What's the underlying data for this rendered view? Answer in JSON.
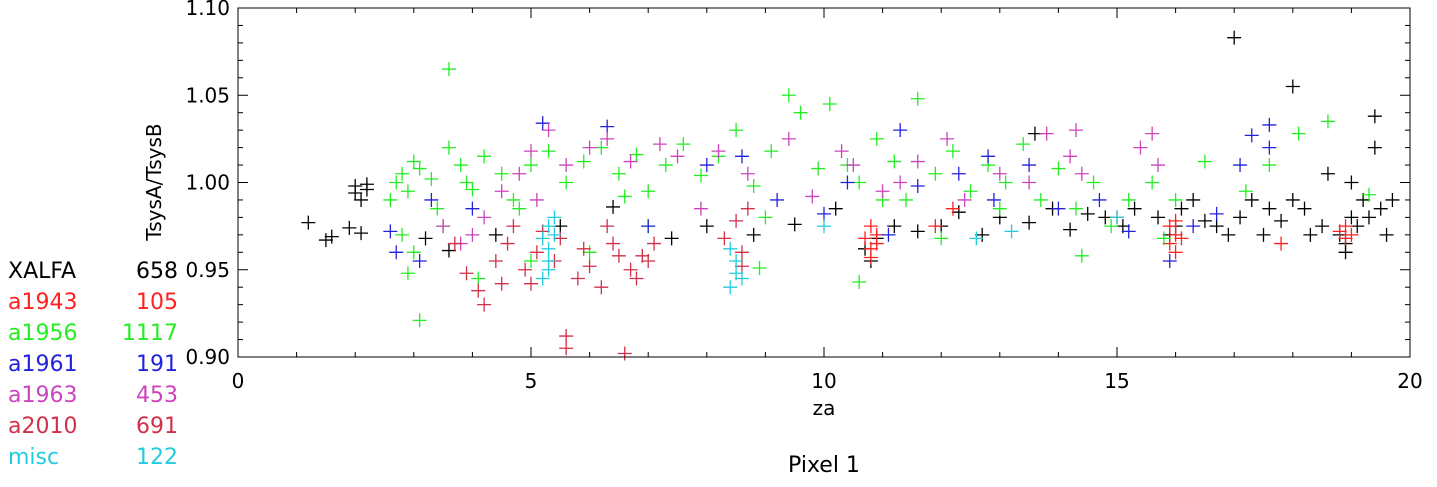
{
  "chart_data": {
    "type": "scatter",
    "title": "Pixel 1",
    "xlabel": "za",
    "ylabel": "TsysA/TsysB",
    "xlim": [
      0,
      20
    ],
    "ylim": [
      0.9,
      1.1
    ],
    "xticks": [
      "0",
      "5",
      "10",
      "15",
      "20"
    ],
    "yticks": [
      "0.90",
      "0.95",
      "1.00",
      "1.05",
      "1.10"
    ],
    "marker": "plus",
    "legend_position": "left",
    "legend": [
      {
        "name": "XALFA",
        "count": "658",
        "color": "#000000"
      },
      {
        "name": "a1943",
        "count": "105",
        "color": "#ff2020"
      },
      {
        "name": "a1956",
        "count": "1117",
        "color": "#22ee22"
      },
      {
        "name": "a1961",
        "count": "191",
        "color": "#2222dd"
      },
      {
        "name": "a1963",
        "count": "453",
        "color": "#cc44bb"
      },
      {
        "name": "a2010",
        "count": "691",
        "color": "#d03048"
      },
      {
        "name": "misc",
        "count": "122",
        "color": "#22ccdd"
      }
    ],
    "series": [
      {
        "name": "XALFA",
        "color": "#000000",
        "points": [
          [
            1.2,
            0.977
          ],
          [
            1.5,
            0.967
          ],
          [
            1.6,
            0.969
          ],
          [
            1.9,
            0.974
          ],
          [
            2.1,
            0.971
          ],
          [
            2.0,
            0.998
          ],
          [
            2.0,
            0.994
          ],
          [
            2.1,
            0.99
          ],
          [
            2.2,
            0.996
          ],
          [
            2.2,
            0.999
          ],
          [
            10.7,
            0.962
          ],
          [
            10.8,
            0.955
          ],
          [
            10.9,
            0.968
          ],
          [
            11.2,
            0.975
          ],
          [
            11.6,
            0.972
          ],
          [
            12.0,
            0.975
          ],
          [
            12.3,
            0.983
          ],
          [
            12.7,
            0.97
          ],
          [
            13.0,
            0.98
          ],
          [
            13.5,
            0.977
          ],
          [
            13.6,
            1.028
          ],
          [
            13.9,
            0.985
          ],
          [
            14.2,
            0.973
          ],
          [
            14.5,
            0.982
          ],
          [
            14.8,
            0.98
          ],
          [
            15.1,
            0.975
          ],
          [
            15.3,
            0.985
          ],
          [
            15.7,
            0.98
          ],
          [
            15.9,
            0.97
          ],
          [
            16.0,
            0.975
          ],
          [
            16.1,
            0.985
          ],
          [
            16.3,
            0.99
          ],
          [
            16.5,
            0.978
          ],
          [
            16.7,
            0.975
          ],
          [
            16.9,
            0.97
          ],
          [
            17.0,
            1.083
          ],
          [
            17.1,
            0.98
          ],
          [
            17.3,
            0.99
          ],
          [
            17.5,
            0.97
          ],
          [
            17.6,
            0.985
          ],
          [
            17.8,
            0.978
          ],
          [
            18.0,
            1.055
          ],
          [
            18.0,
            0.99
          ],
          [
            18.2,
            0.985
          ],
          [
            18.3,
            0.97
          ],
          [
            18.5,
            0.975
          ],
          [
            18.6,
            1.005
          ],
          [
            18.8,
            0.97
          ],
          [
            18.9,
            0.965
          ],
          [
            18.9,
            0.96
          ],
          [
            19.0,
            1.0
          ],
          [
            19.1,
            0.975
          ],
          [
            19.2,
            0.99
          ],
          [
            19.3,
            0.98
          ],
          [
            19.4,
            1.038
          ],
          [
            19.4,
            1.02
          ],
          [
            19.5,
            0.985
          ],
          [
            19.6,
            0.97
          ],
          [
            19.7,
            0.99
          ],
          [
            19.0,
            0.98
          ],
          [
            3.2,
            0.968
          ],
          [
            3.6,
            0.961
          ],
          [
            4.4,
            0.97
          ],
          [
            5.5,
            0.975
          ],
          [
            6.4,
            0.986
          ],
          [
            7.4,
            0.968
          ],
          [
            8.0,
            0.975
          ],
          [
            8.8,
            0.97
          ],
          [
            9.5,
            0.976
          ],
          [
            10.2,
            0.985
          ]
        ]
      },
      {
        "name": "a1943",
        "color": "#ff2020",
        "points": [
          [
            10.7,
            0.968
          ],
          [
            10.8,
            0.962
          ],
          [
            10.8,
            0.975
          ],
          [
            10.9,
            0.97
          ],
          [
            10.8,
            0.957
          ],
          [
            10.9,
            0.965
          ],
          [
            15.9,
            0.975
          ],
          [
            15.9,
            0.965
          ],
          [
            16.0,
            0.97
          ],
          [
            16.0,
            0.96
          ],
          [
            16.0,
            0.978
          ],
          [
            16.1,
            0.968
          ],
          [
            11.9,
            0.975
          ],
          [
            15.0,
            0.98
          ],
          [
            17.8,
            0.965
          ],
          [
            18.8,
            0.972
          ],
          [
            18.9,
            0.968
          ],
          [
            18.9,
            0.975
          ],
          [
            19.0,
            0.97
          ],
          [
            12.2,
            0.985
          ]
        ]
      },
      {
        "name": "a1956",
        "color": "#22ee22",
        "points": [
          [
            3.1,
            0.921
          ],
          [
            3.6,
            1.065
          ],
          [
            2.6,
            0.99
          ],
          [
            2.7,
            1.0
          ],
          [
            2.8,
            1.005
          ],
          [
            2.9,
            0.995
          ],
          [
            3.0,
            1.012
          ],
          [
            3.1,
            1.008
          ],
          [
            3.3,
            1.002
          ],
          [
            3.4,
            0.985
          ],
          [
            3.6,
            1.02
          ],
          [
            3.8,
            1.01
          ],
          [
            4.0,
            0.996
          ],
          [
            4.2,
            1.015
          ],
          [
            4.5,
            1.005
          ],
          [
            4.7,
            0.99
          ],
          [
            5.0,
            1.01
          ],
          [
            5.3,
            1.018
          ],
          [
            5.6,
            1.0
          ],
          [
            5.9,
            1.012
          ],
          [
            6.2,
            1.02
          ],
          [
            6.5,
            1.005
          ],
          [
            6.8,
            1.016
          ],
          [
            7.0,
            0.995
          ],
          [
            7.3,
            1.01
          ],
          [
            7.6,
            1.022
          ],
          [
            7.9,
            1.004
          ],
          [
            8.2,
            1.015
          ],
          [
            8.5,
            1.03
          ],
          [
            8.8,
            0.998
          ],
          [
            9.1,
            1.018
          ],
          [
            9.4,
            1.05
          ],
          [
            9.6,
            1.04
          ],
          [
            9.9,
            1.008
          ],
          [
            10.1,
            1.045
          ],
          [
            10.4,
            1.01
          ],
          [
            10.6,
            1.0
          ],
          [
            10.9,
            1.025
          ],
          [
            11.2,
            1.012
          ],
          [
            11.4,
            0.99
          ],
          [
            11.6,
            1.048
          ],
          [
            11.9,
            1.005
          ],
          [
            12.2,
            1.018
          ],
          [
            12.5,
            0.995
          ],
          [
            12.8,
            1.01
          ],
          [
            13.1,
            1.0
          ],
          [
            13.4,
            1.022
          ],
          [
            13.7,
            0.99
          ],
          [
            14.0,
            1.008
          ],
          [
            14.3,
            0.985
          ],
          [
            14.6,
            1.0
          ],
          [
            14.9,
            0.975
          ],
          [
            15.2,
            0.99
          ],
          [
            15.6,
            1.0
          ],
          [
            15.8,
            0.968
          ],
          [
            16.0,
            0.99
          ],
          [
            16.5,
            1.012
          ],
          [
            17.2,
            0.995
          ],
          [
            17.6,
            1.01
          ],
          [
            18.1,
            1.028
          ],
          [
            18.6,
            1.035
          ],
          [
            19.3,
            0.993
          ],
          [
            10.6,
            0.943
          ],
          [
            8.9,
            0.951
          ],
          [
            4.1,
            0.945
          ],
          [
            5.0,
            0.955
          ],
          [
            6.0,
            0.96
          ],
          [
            7.0,
            0.975
          ],
          [
            12.0,
            0.968
          ],
          [
            14.4,
            0.958
          ],
          [
            3.0,
            0.96
          ],
          [
            3.5,
            0.975
          ],
          [
            4.8,
            0.985
          ],
          [
            6.6,
            0.992
          ],
          [
            9.0,
            0.98
          ],
          [
            11.0,
            0.99
          ],
          [
            13.0,
            0.985
          ],
          [
            2.9,
            0.948
          ],
          [
            2.8,
            0.97
          ],
          [
            3.9,
            1.0
          ]
        ]
      },
      {
        "name": "a1961",
        "color": "#2222dd",
        "points": [
          [
            2.6,
            0.972
          ],
          [
            2.7,
            0.96
          ],
          [
            3.3,
            0.99
          ],
          [
            4.0,
            0.985
          ],
          [
            5.2,
            1.034
          ],
          [
            6.3,
            1.032
          ],
          [
            7.0,
            0.975
          ],
          [
            8.0,
            1.01
          ],
          [
            8.6,
            1.015
          ],
          [
            9.2,
            0.99
          ],
          [
            10.0,
            0.982
          ],
          [
            10.4,
            1.0
          ],
          [
            11.1,
            0.97
          ],
          [
            11.6,
            0.998
          ],
          [
            12.3,
            1.005
          ],
          [
            12.9,
            0.99
          ],
          [
            13.5,
            1.01
          ],
          [
            14.0,
            0.985
          ],
          [
            14.7,
            0.99
          ],
          [
            15.2,
            0.972
          ],
          [
            15.9,
            0.955
          ],
          [
            16.3,
            0.975
          ],
          [
            16.7,
            0.982
          ],
          [
            17.1,
            1.01
          ],
          [
            17.3,
            1.027
          ],
          [
            17.6,
            1.033
          ],
          [
            17.6,
            1.02
          ],
          [
            11.3,
            1.03
          ],
          [
            12.8,
            1.015
          ],
          [
            3.1,
            0.955
          ]
        ]
      },
      {
        "name": "a1963",
        "color": "#cc44bb",
        "points": [
          [
            3.5,
            0.975
          ],
          [
            3.8,
            0.965
          ],
          [
            4.2,
            0.98
          ],
          [
            4.5,
            0.995
          ],
          [
            4.8,
            1.005
          ],
          [
            5.0,
            1.018
          ],
          [
            5.3,
            1.03
          ],
          [
            5.6,
            1.01
          ],
          [
            6.0,
            1.02
          ],
          [
            6.3,
            1.025
          ],
          [
            6.7,
            1.012
          ],
          [
            7.2,
            1.022
          ],
          [
            7.5,
            1.015
          ],
          [
            8.2,
            1.018
          ],
          [
            8.7,
            1.005
          ],
          [
            9.4,
            1.025
          ],
          [
            10.3,
            1.018
          ],
          [
            10.5,
            1.01
          ],
          [
            11.3,
            1.0
          ],
          [
            11.6,
            1.012
          ],
          [
            12.1,
            1.025
          ],
          [
            13.0,
            1.005
          ],
          [
            13.8,
            1.028
          ],
          [
            14.2,
            1.015
          ],
          [
            14.3,
            1.03
          ],
          [
            14.4,
            1.005
          ],
          [
            15.4,
            1.02
          ],
          [
            15.6,
            1.028
          ],
          [
            15.7,
            1.01
          ],
          [
            4.0,
            0.97
          ],
          [
            5.1,
            0.99
          ],
          [
            7.9,
            0.985
          ],
          [
            9.8,
            0.992
          ],
          [
            12.4,
            0.99
          ],
          [
            13.5,
            1.0
          ],
          [
            11.0,
            0.995
          ]
        ]
      },
      {
        "name": "a2010",
        "color": "#d03048",
        "points": [
          [
            3.7,
            0.965
          ],
          [
            3.9,
            0.948
          ],
          [
            4.1,
            0.938
          ],
          [
            4.2,
            0.93
          ],
          [
            4.4,
            0.955
          ],
          [
            4.6,
            0.965
          ],
          [
            4.9,
            0.95
          ],
          [
            5.1,
            0.96
          ],
          [
            5.2,
            0.972
          ],
          [
            5.4,
            0.955
          ],
          [
            5.6,
            0.912
          ],
          [
            5.6,
            0.905
          ],
          [
            5.8,
            0.945
          ],
          [
            6.0,
            0.952
          ],
          [
            6.2,
            0.94
          ],
          [
            6.4,
            0.965
          ],
          [
            6.6,
            0.902
          ],
          [
            6.7,
            0.95
          ],
          [
            6.9,
            0.958
          ],
          [
            7.1,
            0.965
          ],
          [
            4.7,
            0.975
          ],
          [
            5.5,
            0.968
          ],
          [
            6.3,
            0.975
          ],
          [
            6.8,
            0.945
          ],
          [
            7.0,
            0.955
          ],
          [
            8.3,
            0.968
          ],
          [
            8.5,
            0.978
          ],
          [
            8.6,
            0.96
          ],
          [
            8.6,
            0.952
          ],
          [
            8.7,
            0.985
          ],
          [
            5.0,
            0.942
          ],
          [
            5.9,
            0.962
          ],
          [
            6.5,
            0.958
          ],
          [
            4.5,
            0.942
          ]
        ]
      },
      {
        "name": "misc",
        "color": "#22ccdd",
        "points": [
          [
            5.2,
            0.945
          ],
          [
            5.3,
            0.955
          ],
          [
            5.3,
            0.962
          ],
          [
            5.4,
            0.97
          ],
          [
            5.3,
            0.975
          ],
          [
            5.4,
            0.98
          ],
          [
            5.2,
            0.968
          ],
          [
            5.3,
            0.95
          ],
          [
            8.4,
            0.94
          ],
          [
            8.5,
            0.948
          ],
          [
            8.5,
            0.955
          ],
          [
            8.4,
            0.962
          ],
          [
            8.6,
            0.945
          ],
          [
            10.0,
            0.975
          ],
          [
            12.6,
            0.968
          ],
          [
            13.2,
            0.972
          ],
          [
            15.0,
            0.98
          ]
        ]
      }
    ]
  }
}
